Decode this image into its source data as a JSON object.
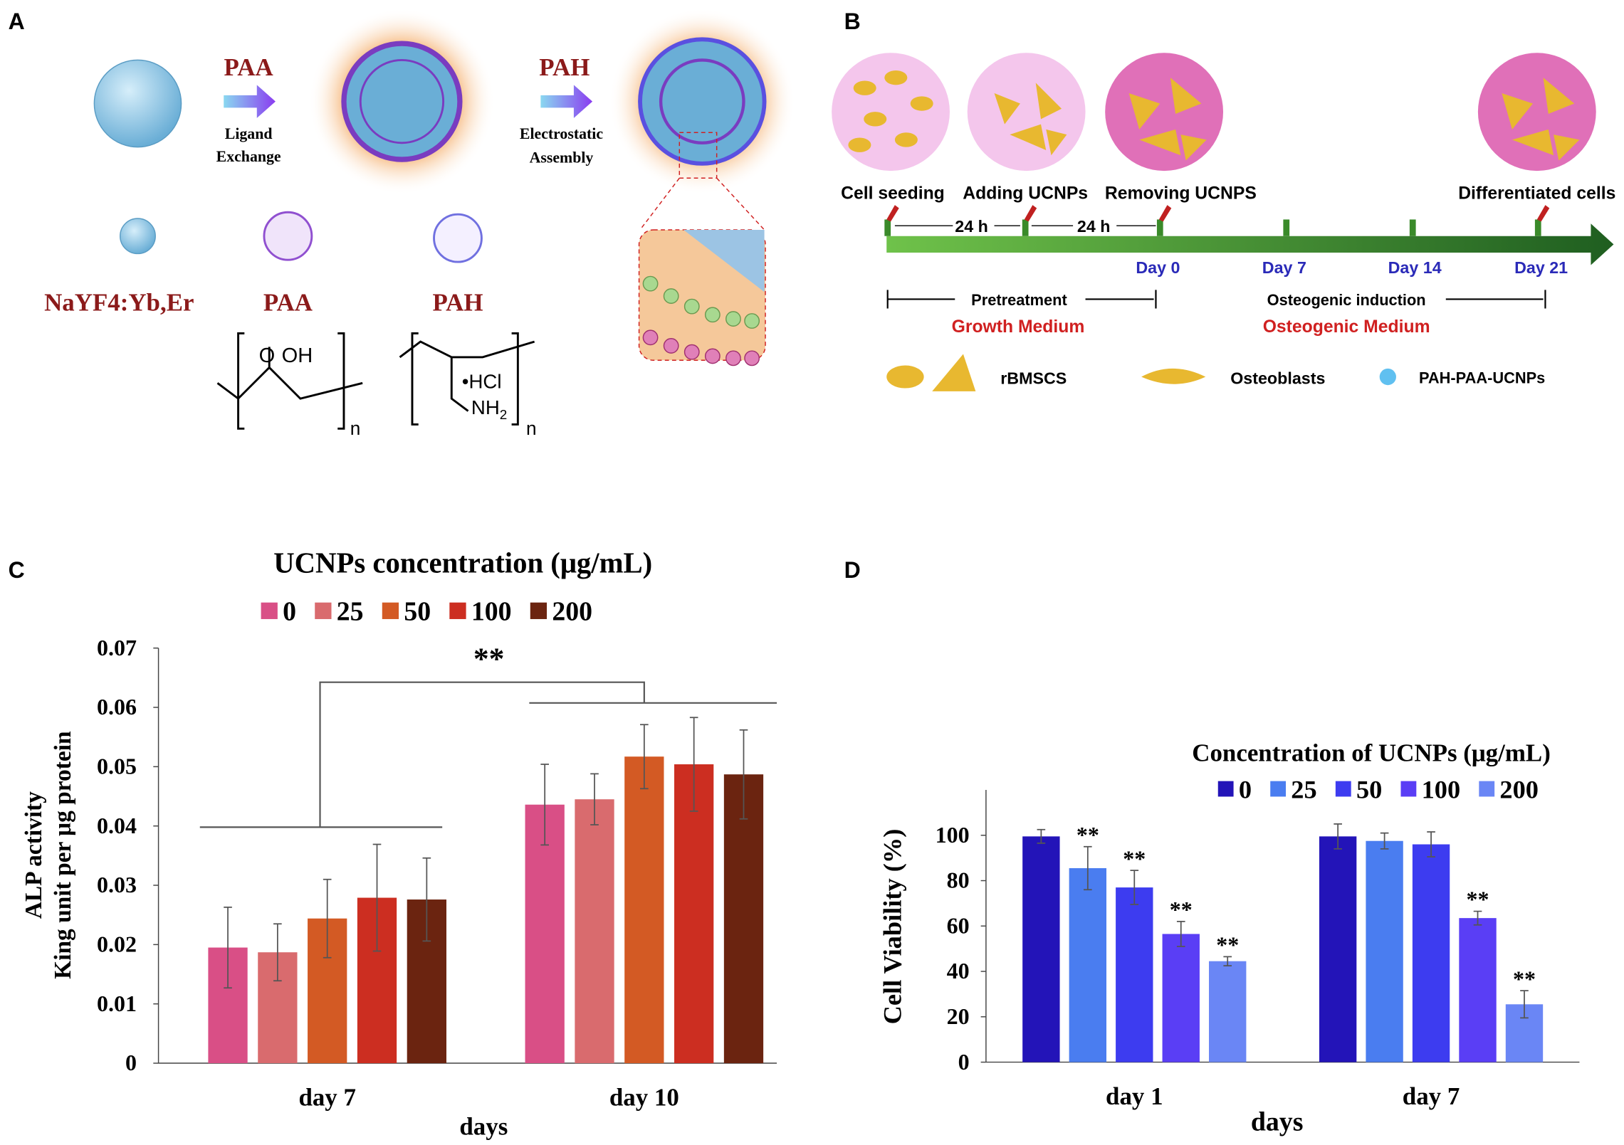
{
  "panel_a": {
    "label": "A",
    "step1": {
      "name": "PAA",
      "line1": "Ligand",
      "line2": "Exchange"
    },
    "step2": {
      "name": "PAH",
      "line1": "Electrostatic",
      "line2": "Assembly"
    },
    "legend": [
      "NaYF4:Yb,Er",
      "PAA",
      "PAH"
    ],
    "paa_formula": {
      "o": "O",
      "oh": "OH",
      "n": "n"
    },
    "pah_formula": {
      "hcl": "•HCl",
      "nh": "NH",
      "sub": "2",
      "n": "n"
    }
  },
  "panel_b": {
    "label": "B",
    "stages": [
      "Cell seeding",
      "Adding UCNPs",
      "Removing UCNPS",
      "Differentiated cells"
    ],
    "intervals": [
      "24 h",
      "24 h"
    ],
    "days": [
      "Day 0",
      "Day 7",
      "Day 14",
      "Day 21"
    ],
    "phases": [
      "Pretreatment",
      "Osteogenic induction"
    ],
    "media": [
      "Growth Medium",
      "Osteogenic Medium"
    ],
    "legend": [
      "rBMSCS",
      "Osteoblasts",
      "PAH-PAA-UCNPs"
    ]
  },
  "chart_data": [
    {
      "type": "bar",
      "panel": "C",
      "title": "UCNPs concentration (μg/mL)",
      "y_label": [
        "ALP activity",
        "King unit per μg protein"
      ],
      "x_label": "days",
      "annotation": "**",
      "categories": [
        "day 7",
        "day 10"
      ],
      "ylim": [
        0,
        0.07
      ],
      "yticks": [
        0,
        0.01,
        0.02,
        0.03,
        0.04,
        0.05,
        0.06,
        0.07
      ],
      "series": [
        {
          "name": "0",
          "color": "#d94f86",
          "values": [
            0.0195,
            0.0436
          ],
          "errors": [
            0.0068,
            0.0068
          ]
        },
        {
          "name": "25",
          "color": "#d96b6e",
          "values": [
            0.0187,
            0.0445
          ],
          "errors": [
            0.0048,
            0.0043
          ]
        },
        {
          "name": "50",
          "color": "#d35a24",
          "values": [
            0.0244,
            0.0517
          ],
          "errors": [
            0.0066,
            0.0054
          ]
        },
        {
          "name": "100",
          "color": "#cc2e21",
          "values": [
            0.0279,
            0.0504
          ],
          "errors": [
            0.009,
            0.0079
          ]
        },
        {
          "name": "200",
          "color": "#6b2410",
          "values": [
            0.0276,
            0.0487
          ],
          "errors": [
            0.007,
            0.0075
          ]
        }
      ]
    },
    {
      "type": "bar",
      "panel": "D",
      "title": "Concentration of UCNPs (μg/mL)",
      "y_label": [
        "Cell Viability (%)"
      ],
      "x_label": "days",
      "categories": [
        "day 1",
        "day 7"
      ],
      "ylim": [
        0,
        120
      ],
      "yticks": [
        0,
        20,
        40,
        60,
        80,
        100
      ],
      "series": [
        {
          "name": "0",
          "color": "#2314b8",
          "values": [
            99.5,
            99.5
          ],
          "errors": [
            3,
            5.5
          ],
          "significance": [
            null,
            null
          ]
        },
        {
          "name": "25",
          "color": "#4a7df0",
          "values": [
            85.5,
            97.5
          ],
          "errors": [
            9.5,
            3.5
          ],
          "significance": [
            "**",
            null
          ]
        },
        {
          "name": "50",
          "color": "#3d3cf0",
          "values": [
            77,
            96
          ],
          "errors": [
            7.5,
            5.5
          ],
          "significance": [
            "**",
            null
          ]
        },
        {
          "name": "100",
          "color": "#5a3ef5",
          "values": [
            56.5,
            63.5
          ],
          "errors": [
            5.5,
            3
          ],
          "significance": [
            "**",
            "**"
          ]
        },
        {
          "name": "200",
          "color": "#6a86f5",
          "values": [
            44.5,
            25.5
          ],
          "errors": [
            2,
            6
          ],
          "significance": [
            "**",
            "**"
          ]
        }
      ]
    }
  ]
}
